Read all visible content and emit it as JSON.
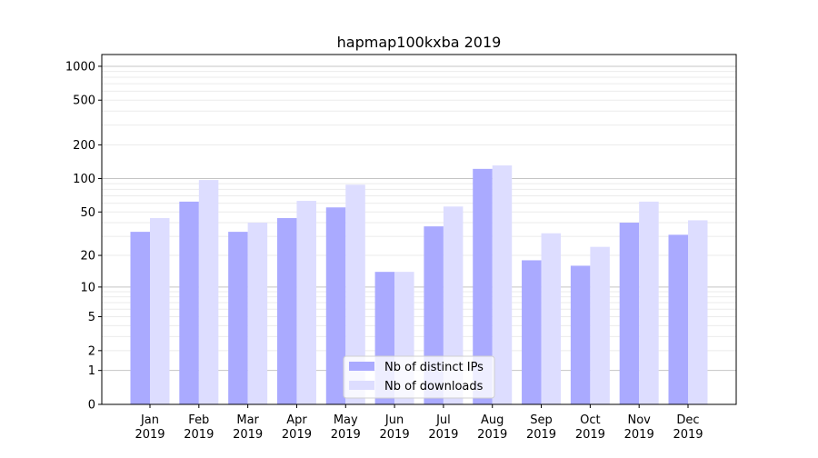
{
  "chart_data": {
    "type": "bar",
    "title": "hapmap100kxba 2019",
    "xlabel": "",
    "ylabel": "",
    "yscale": "symlog",
    "ylim": [
      0,
      1300
    ],
    "yticks": [
      0,
      1,
      2,
      5,
      10,
      20,
      50,
      100,
      200,
      500,
      1000
    ],
    "grid": true,
    "legend_placement": "lower-center",
    "categories": [
      "Jan\n2019",
      "Feb\n2019",
      "Mar\n2019",
      "Apr\n2019",
      "May\n2019",
      "Jun\n2019",
      "Jul\n2019",
      "Aug\n2019",
      "Sep\n2019",
      "Oct\n2019",
      "Nov\n2019",
      "Dec\n2019"
    ],
    "series": [
      {
        "name": "Nb of distinct IPs",
        "color": "#aaaaff",
        "values": [
          33,
          62,
          33,
          44,
          55,
          14,
          37,
          122,
          18,
          16,
          40,
          31
        ]
      },
      {
        "name": "Nb of downloads",
        "color": "#ddddff",
        "values": [
          44,
          97,
          40,
          63,
          88,
          14,
          56,
          131,
          32,
          24,
          62,
          42
        ]
      }
    ]
  }
}
